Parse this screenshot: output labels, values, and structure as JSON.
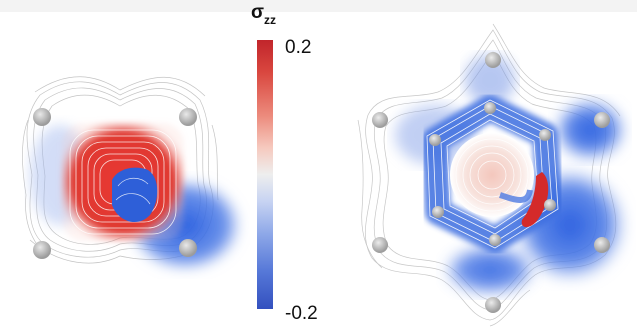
{
  "colorbar": {
    "symbol": "σ",
    "subscript": "zz",
    "max_label": "0.2",
    "min_label": "-0.2",
    "colors": {
      "max": "#c1252b",
      "mid": "#eeeeee",
      "min": "#3350bf"
    }
  },
  "panels": [
    {
      "id": "left",
      "shape": "square-4-atoms",
      "atoms": 4
    },
    {
      "id": "right",
      "shape": "hexagon-6-atoms",
      "atoms": 6
    }
  ]
}
